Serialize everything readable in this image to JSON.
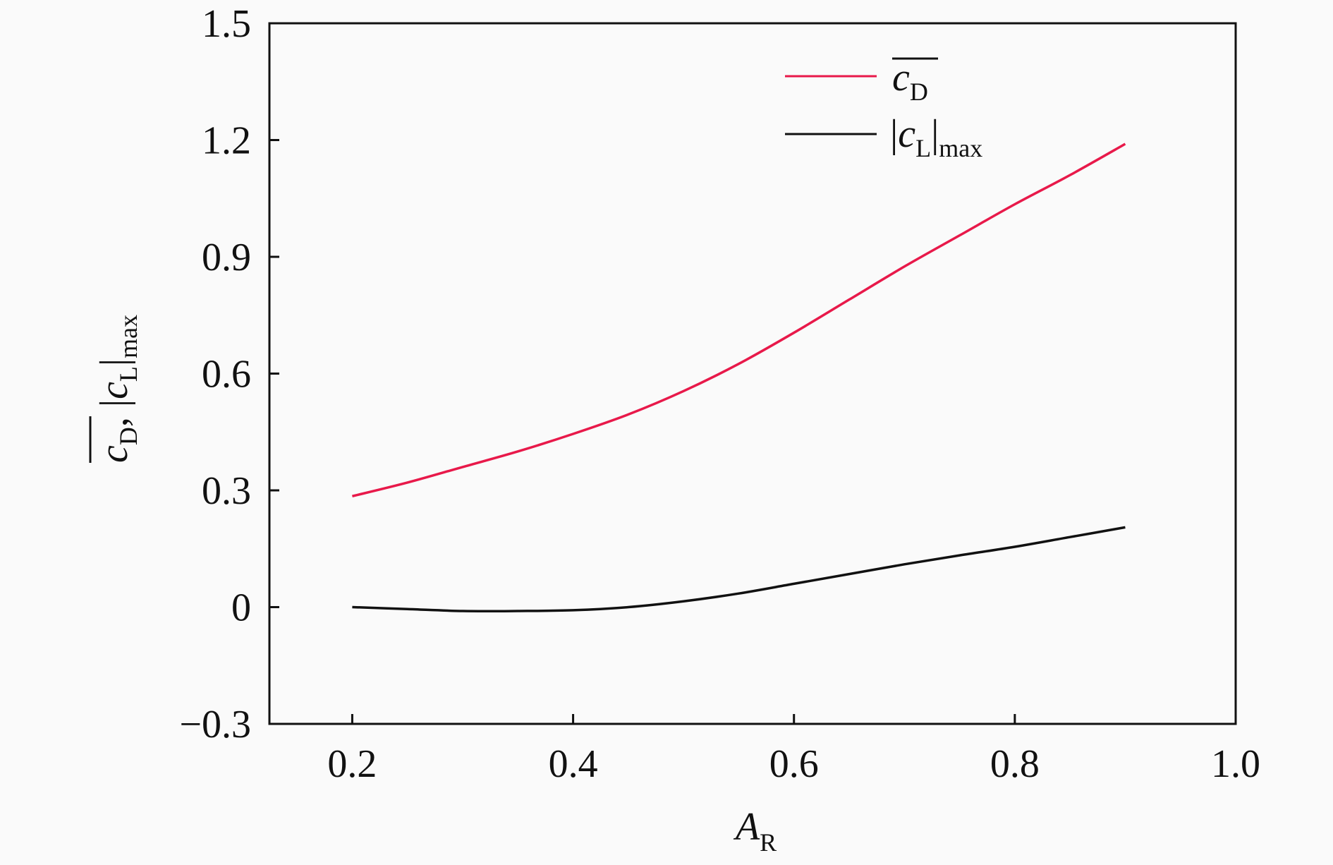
{
  "chart_data": {
    "type": "line",
    "title": "",
    "xlabel": {
      "main": "A",
      "sub": "R"
    },
    "ylabel": {
      "mean_main": "c",
      "mean_sub": "D",
      "separator": ",",
      "abs_main": "c",
      "abs_sub": "L",
      "abs_suffix": "max"
    },
    "xlim": [
      0.125,
      1.0
    ],
    "ylim": [
      -0.3,
      1.5
    ],
    "xticks": [
      0.2,
      0.4,
      0.6,
      0.8,
      1.0
    ],
    "xtick_labels": [
      "0.2",
      "0.4",
      "0.6",
      "0.8",
      "1.0"
    ],
    "yticks": [
      -0.3,
      0,
      0.3,
      0.6,
      0.9,
      1.2,
      1.5
    ],
    "ytick_labels": [
      "−0.3",
      "0",
      "0.3",
      "0.6",
      "0.9",
      "1.2",
      "1.5"
    ],
    "grid": false,
    "legend_position": "top-right",
    "series": [
      {
        "legend": {
          "main": "c",
          "sub": "D",
          "overline": true
        },
        "color": "#e8194a",
        "x": [
          0.2,
          0.25,
          0.3,
          0.35,
          0.4,
          0.45,
          0.5,
          0.55,
          0.6,
          0.65,
          0.7,
          0.75,
          0.8,
          0.85,
          0.9
        ],
        "y": [
          0.285,
          0.32,
          0.36,
          0.4,
          0.445,
          0.495,
          0.555,
          0.625,
          0.705,
          0.79,
          0.875,
          0.955,
          1.035,
          1.11,
          1.19
        ]
      },
      {
        "legend": {
          "main": "c",
          "sub": "L",
          "suffix": "max",
          "abs": true
        },
        "color": "#111111",
        "x": [
          0.2,
          0.25,
          0.3,
          0.35,
          0.4,
          0.45,
          0.5,
          0.55,
          0.6,
          0.65,
          0.7,
          0.75,
          0.8,
          0.85,
          0.9
        ],
        "y": [
          0.0,
          -0.005,
          -0.01,
          -0.01,
          -0.008,
          0.0,
          0.015,
          0.035,
          0.06,
          0.085,
          0.11,
          0.133,
          0.155,
          0.18,
          0.205
        ]
      }
    ]
  }
}
